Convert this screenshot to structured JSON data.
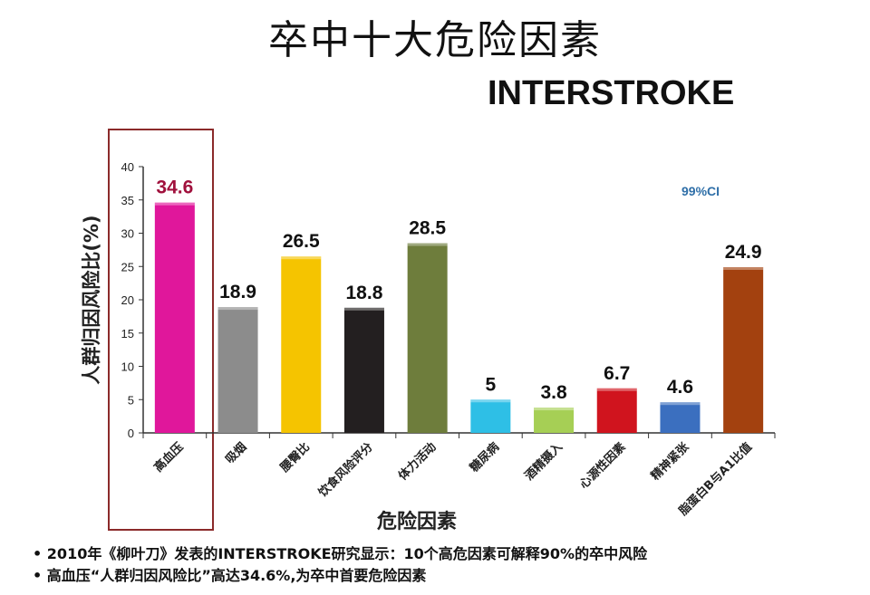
{
  "title": "卒中十大危险因素",
  "subtitle": "INTERSTROKE",
  "notes": [
    "2010年《柳叶刀》发表的INTERSTROKE研究显示：10个高危因素可解释90%的卒中风险",
    "高血压“人群归因风险比”高达34.6%,为卒中首要危险因素"
  ],
  "chart_data": {
    "type": "bar",
    "categories": [
      "高血压",
      "吸烟",
      "腰臀比",
      "饮食风险评分",
      "体力活动",
      "糖尿病",
      "酒精摄入",
      "心源性因素",
      "精神紧张",
      "脂蛋白B与A1比值"
    ],
    "values": [
      34.6,
      18.9,
      26.5,
      18.8,
      28.5,
      5,
      3.8,
      6.7,
      4.6,
      24.9
    ],
    "labels": [
      "34.6",
      "18.9",
      "26.5",
      "18.8",
      "28.5",
      "5",
      "3.8",
      "6.7",
      "4.6",
      "24.9"
    ],
    "colors": [
      "#e0179b",
      "#8c8c8c",
      "#f5c400",
      "#231f20",
      "#6e7d3c",
      "#2ebfe6",
      "#a6cf55",
      "#d0141e",
      "#3b6fbf",
      "#a3410f"
    ],
    "label_colors": [
      "#a0103c",
      "#111",
      "#111",
      "#111",
      "#111",
      "#111",
      "#111",
      "#111",
      "#111",
      "#111"
    ],
    "xlabel": "危险因素",
    "ylabel": "人群归因风险比(%)",
    "ylim": [
      0,
      40
    ],
    "yticks": [
      0,
      5,
      10,
      15,
      20,
      25,
      30,
      35,
      40
    ],
    "annotation": "99%CI",
    "highlight": "高血压"
  }
}
